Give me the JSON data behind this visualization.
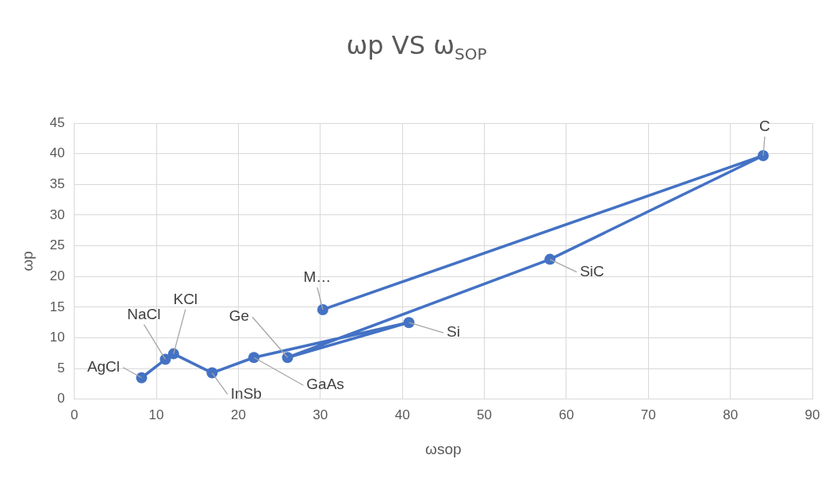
{
  "chart_data": {
    "type": "line",
    "title": "ωp VS ω$_{SOP}$",
    "xlabel": "ωsop",
    "ylabel": "ωp",
    "series": [
      {
        "color": "#4472c4",
        "x": [
          8.2,
          11.1,
          12.1,
          16.8,
          21.9,
          40.8,
          26.0,
          58.0,
          84.0,
          30.3
        ],
        "values": [
          3.5,
          6.5,
          7.4,
          4.3,
          6.8,
          12.5,
          6.8,
          22.8,
          39.7,
          14.6
        ]
      }
    ],
    "xlim": [
      0,
      90
    ],
    "xticks": [
      0,
      10,
      20,
      30,
      40,
      50,
      60,
      70,
      80,
      90
    ],
    "ylim": [
      0,
      45
    ],
    "yticks": [
      0,
      5,
      10,
      15,
      20,
      25,
      30,
      35,
      40,
      45
    ],
    "grid": true,
    "marker": "circle",
    "line_style": "solid",
    "annotations": [
      {
        "text": "AgCl",
        "x": 8.2,
        "y": 3.5
      },
      {
        "text": "NaCl",
        "x": 11.1,
        "y": 6.5
      },
      {
        "text": "KCl",
        "x": 12.1,
        "y": 7.4
      },
      {
        "text": "InSb",
        "x": 16.8,
        "y": 4.3
      },
      {
        "text": "GaAs",
        "x": 21.9,
        "y": 6.8
      },
      {
        "text": "Si",
        "x": 40.8,
        "y": 12.5
      },
      {
        "text": "Ge",
        "x": 26.0,
        "y": 6.8
      },
      {
        "text": "SiC",
        "x": 58.0,
        "y": 22.8
      },
      {
        "text": "C",
        "x": 84.0,
        "y": 39.7
      },
      {
        "text": "M…",
        "x": 30.3,
        "y": 14.6
      }
    ]
  }
}
